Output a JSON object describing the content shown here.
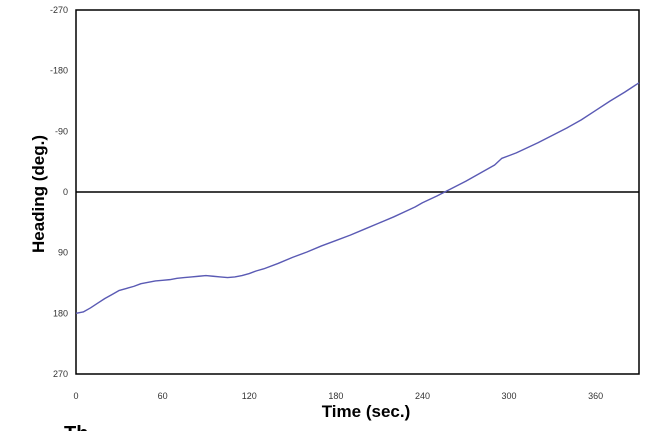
{
  "chart_data": {
    "type": "line",
    "title": "",
    "xlabel": "Time (sec.)",
    "ylabel": "Heading (deg.)",
    "xlim": [
      0,
      390
    ],
    "ylim": [
      -270,
      270
    ],
    "y_inverted": true,
    "x_ticks": [
      0,
      60,
      120,
      180,
      240,
      300,
      360
    ],
    "x_tick_labels": [
      "0",
      "60",
      "120",
      "180",
      "240",
      "300",
      "360"
    ],
    "y_ticks": [
      -270,
      -180,
      -90,
      0,
      90,
      180,
      270
    ],
    "y_tick_labels": [
      "-270",
      "-180",
      "-90",
      "0",
      "90",
      "180",
      "270"
    ],
    "grid": false,
    "zero_line": true,
    "legend": "none",
    "series": [
      {
        "color": "#5a5ab4",
        "x": [
          0,
          5,
          10,
          15,
          20,
          25,
          30,
          35,
          40,
          45,
          50,
          55,
          60,
          65,
          70,
          75,
          80,
          85,
          90,
          95,
          100,
          105,
          110,
          115,
          120,
          125,
          130,
          140,
          150,
          160,
          170,
          180,
          190,
          200,
          210,
          220,
          230,
          235,
          240,
          250,
          260,
          270,
          280,
          290,
          295,
          300,
          305,
          310,
          320,
          330,
          340,
          350,
          360,
          370,
          380,
          390
        ],
        "y": [
          180,
          178,
          172,
          165,
          158,
          152,
          146,
          143,
          140,
          136,
          134,
          132,
          131,
          130,
          128,
          127,
          126,
          125,
          124,
          125,
          126,
          127,
          126,
          124,
          121,
          117,
          114,
          106,
          97,
          89,
          80,
          72,
          64,
          55,
          46,
          37,
          27,
          22,
          16,
          6,
          -5,
          -16,
          -28,
          -40,
          -50,
          -54,
          -58,
          -63,
          -73,
          -84,
          -95,
          -107,
          -121,
          -135,
          -148,
          -162
        ]
      }
    ],
    "clipped_text": "Th"
  }
}
